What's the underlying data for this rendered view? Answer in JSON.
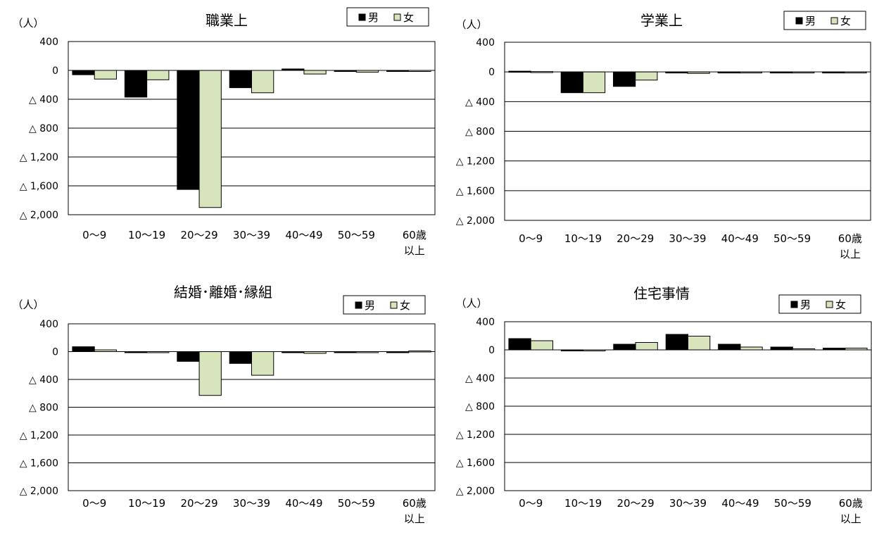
{
  "unit_label": "（人）",
  "tick_labels": [
    "400",
    "0",
    "△ 400",
    "△ 800",
    "△ 1,200",
    "△ 1,600",
    "△ 2,000"
  ],
  "colors": {
    "male": "#000000",
    "female": "#d8e4bc",
    "grid": "#000000"
  },
  "chart_data": [
    {
      "type": "bar",
      "title": "職業上",
      "categories": [
        "0～9",
        "10～19",
        "20～29",
        "30～39",
        "40～49",
        "50～59",
        "60歳\n以上"
      ],
      "series": [
        {
          "name": "男",
          "values": [
            -60,
            -370,
            -1650,
            -240,
            20,
            -15,
            -10
          ]
        },
        {
          "name": "女",
          "values": [
            -120,
            -130,
            -1900,
            -310,
            -50,
            -25,
            -10
          ]
        }
      ],
      "ylim": [
        -2000,
        400
      ],
      "yticks": [
        400,
        0,
        -400,
        -800,
        -1200,
        -1600,
        -2000
      ],
      "grid": true,
      "legend": "top-right"
    },
    {
      "type": "bar",
      "title": "学業上",
      "categories": [
        "0～9",
        "10～19",
        "20～29",
        "30～39",
        "40～49",
        "50～59",
        "60歳\n以上"
      ],
      "series": [
        {
          "name": "男",
          "values": [
            10,
            -280,
            -195,
            -10,
            -10,
            -10,
            -10
          ]
        },
        {
          "name": "女",
          "values": [
            5,
            -280,
            -110,
            -20,
            -10,
            -10,
            -10
          ]
        }
      ],
      "ylim": [
        -2000,
        400
      ],
      "yticks": [
        400,
        0,
        -400,
        -800,
        -1200,
        -1600,
        -2000
      ],
      "grid": true,
      "legend": "top-right"
    },
    {
      "type": "bar",
      "title": "結婚･離婚･縁組",
      "categories": [
        "0～9",
        "10～19",
        "20～29",
        "30～39",
        "40～49",
        "50～59",
        "60歳\n以上"
      ],
      "series": [
        {
          "name": "男",
          "values": [
            70,
            -10,
            -140,
            -170,
            -10,
            -10,
            -10
          ]
        },
        {
          "name": "女",
          "values": [
            25,
            -10,
            -630,
            -340,
            -25,
            -10,
            10
          ]
        }
      ],
      "ylim": [
        -2000,
        400
      ],
      "yticks": [
        400,
        0,
        -400,
        -800,
        -1200,
        -1600,
        -2000
      ],
      "grid": true,
      "legend": "top-right"
    },
    {
      "type": "bar",
      "title": "住宅事情",
      "categories": [
        "0～9",
        "10～19",
        "20～29",
        "30～39",
        "40～49",
        "50～59",
        "60歳\n以上"
      ],
      "series": [
        {
          "name": "男",
          "values": [
            160,
            -10,
            80,
            220,
            80,
            40,
            25
          ]
        },
        {
          "name": "女",
          "values": [
            130,
            -10,
            105,
            195,
            40,
            15,
            25
          ]
        }
      ],
      "ylim": [
        -2000,
        400
      ],
      "yticks": [
        400,
        0,
        -400,
        -800,
        -1200,
        -1600,
        -2000
      ],
      "grid": true,
      "legend": "top-right"
    }
  ]
}
